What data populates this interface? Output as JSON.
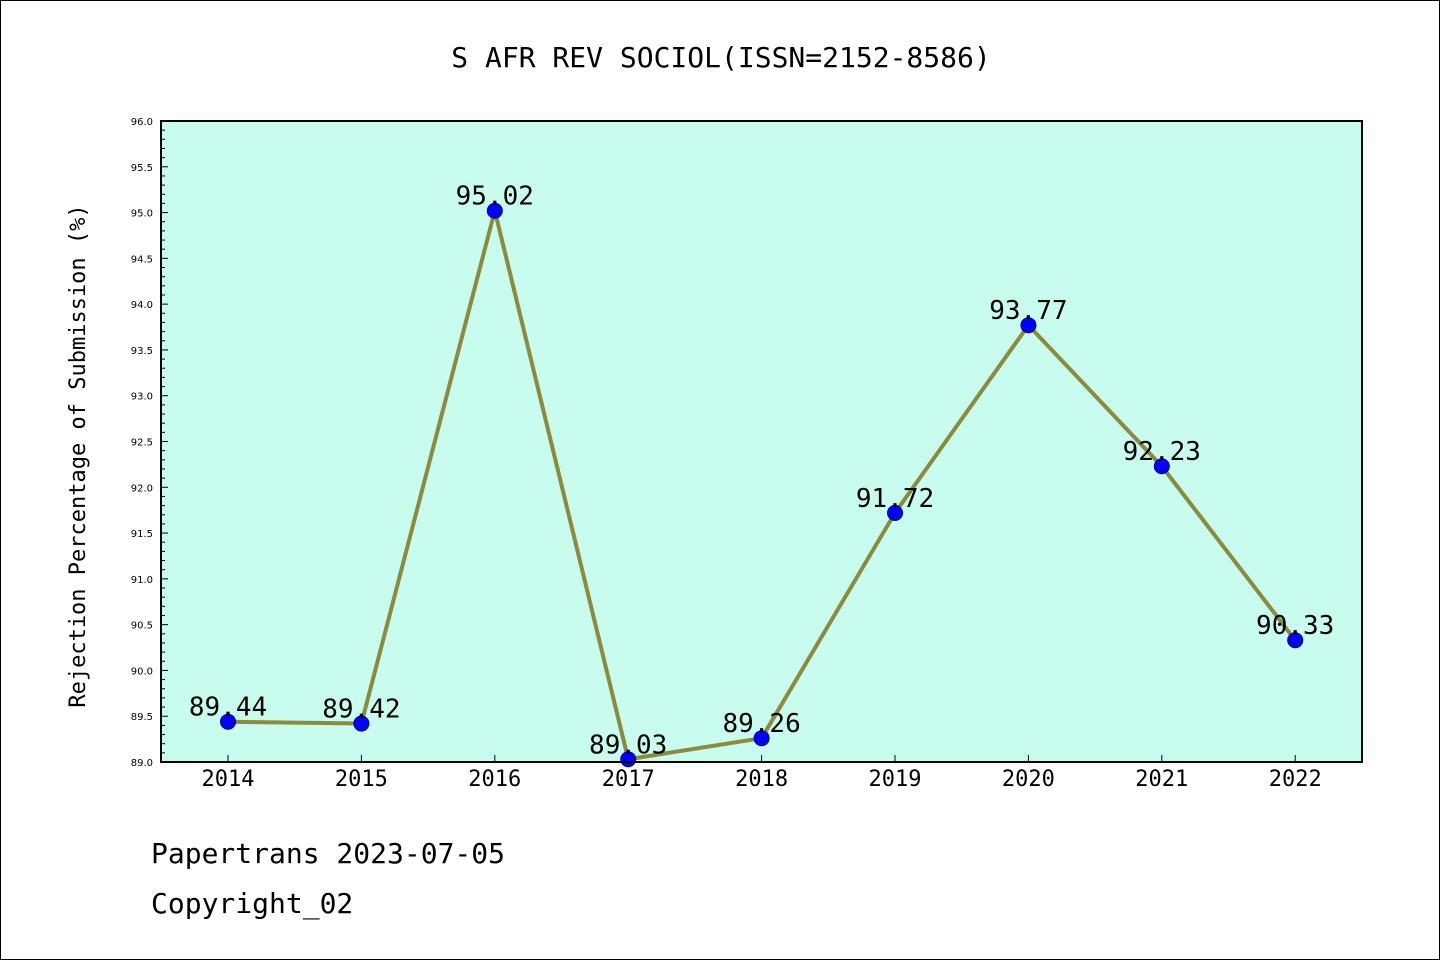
{
  "footer": {
    "line1": "Papertrans 2023-07-05",
    "line2": "Copyright_02"
  },
  "chart_data": {
    "type": "line",
    "title": "S AFR REV SOCIOL(ISSN=2152-8586)",
    "xlabel": "",
    "ylabel": "Rejection Percentage of Submission (%)",
    "categories": [
      "2014",
      "2015",
      "2016",
      "2017",
      "2018",
      "2019",
      "2020",
      "2021",
      "2022"
    ],
    "series": [
      {
        "values": [
          89.44,
          89.42,
          95.02,
          89.03,
          89.26,
          91.72,
          93.77,
          92.23,
          90.33
        ],
        "labels": [
          "89.44",
          "89.42",
          "95.02",
          "89.03",
          "89.26",
          "91.72",
          "93.77",
          "92.23",
          "90.33"
        ]
      }
    ],
    "ylim": [
      89.0,
      96.0
    ],
    "yticks": [
      "89.0",
      "89.5",
      "90.0",
      "90.5",
      "91.0",
      "91.5",
      "92.0",
      "92.5",
      "93.0",
      "93.5",
      "94.0",
      "94.5",
      "95.0",
      "95.5",
      "96.0"
    ],
    "grid": false,
    "legend": "none",
    "colors": {
      "plot_background": "#c8fcee",
      "line": "#8c8a3c",
      "marker": "#0000ff",
      "axis": "#000000"
    }
  }
}
